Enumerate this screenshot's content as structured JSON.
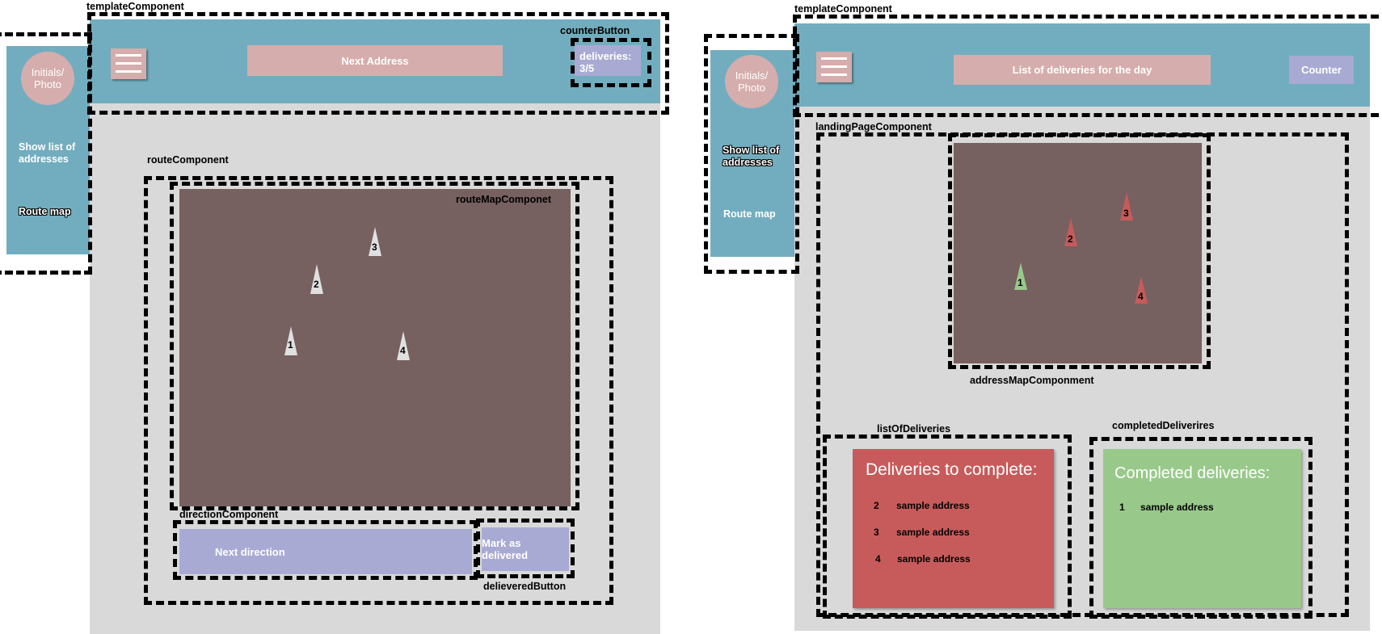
{
  "left": {
    "template_label": "templateComponent",
    "counter_button_label": "counterButton",
    "header_title": "Next Address",
    "counter_text": "deliveries:\n3/5",
    "sidebar": {
      "avatar": "Initials/\nPhoto",
      "item1": "Show list of\naddresses",
      "item2": "Route map"
    },
    "route_label": "routeComponent",
    "routemap_label": "routeMapComponet",
    "direction_label": "directionComponent",
    "next_direction": "Next direction",
    "mark_delivered": "Mark as delivered",
    "delivered_button_label": "delieveredButton",
    "markers": [
      "1",
      "2",
      "3",
      "4"
    ]
  },
  "right": {
    "template_label": "templateComponent",
    "header_title": "List of deliveries for the day",
    "counter": "Counter",
    "sidebar": {
      "avatar": "Initials/\nPhoto",
      "item1": "Show list of\naddresses",
      "item2": "Route map"
    },
    "landing_label": "landingPageComponent",
    "addressmap_label": "addressMapComponment",
    "list_label": "listOfDeliveries",
    "completed_label": "completedDeliverires",
    "markers": [
      "1",
      "2",
      "3",
      "4"
    ],
    "to_complete": {
      "title": "Deliveries to complete:",
      "items": [
        {
          "num": "2",
          "text": "sample address"
        },
        {
          "num": "3",
          "text": "sample address"
        },
        {
          "num": "4",
          "text": "sample address"
        }
      ]
    },
    "completed": {
      "title": "Completed deliveries:",
      "items": [
        {
          "num": "1",
          "text": "sample address"
        }
      ]
    }
  },
  "colors": {
    "teal": "#72adbf",
    "grey": "#d9d9d9",
    "map": "#776060",
    "pink": "#d5adac",
    "lavender": "#a9aad3",
    "red": "#c75b5b",
    "green": "#98c98a"
  }
}
